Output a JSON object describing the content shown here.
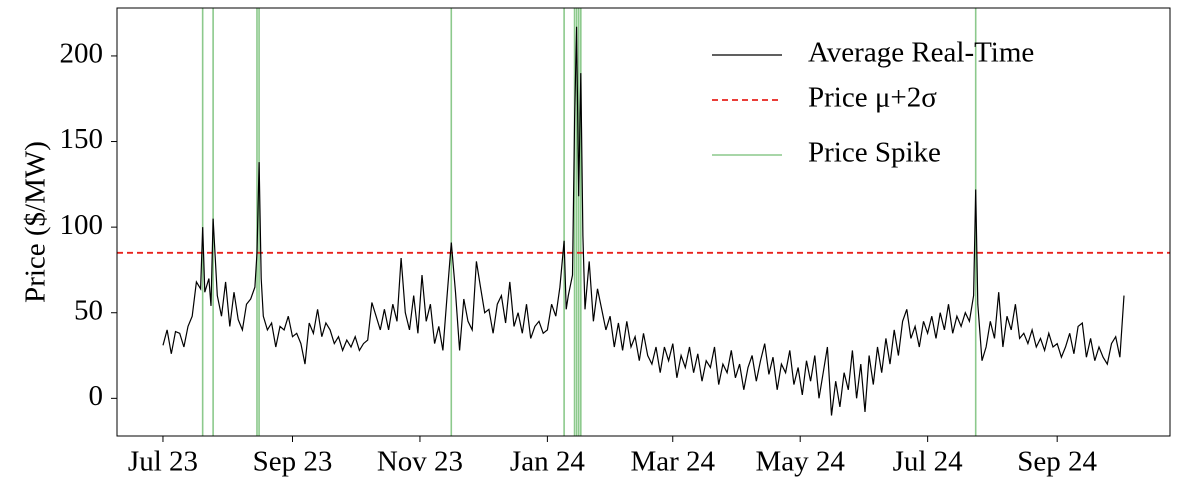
{
  "chart_data": {
    "type": "line",
    "ylabel": "Price ($/MW)",
    "x": [
      0,
      2,
      4,
      6,
      8,
      10,
      12,
      14,
      16,
      18,
      19,
      20,
      22,
      23,
      24,
      26,
      28,
      30,
      32,
      34,
      36,
      38,
      40,
      42,
      44,
      45,
      46,
      47,
      48,
      50,
      52,
      54,
      56,
      58,
      60,
      62,
      64,
      66,
      68,
      70,
      72,
      74,
      76,
      78,
      80,
      82,
      84,
      86,
      88,
      90,
      92,
      94,
      96,
      98,
      100,
      102,
      104,
      106,
      108,
      110,
      112,
      114,
      116,
      118,
      120,
      122,
      124,
      126,
      128,
      130,
      132,
      134,
      136,
      138,
      140,
      142,
      144,
      146,
      148,
      150,
      152,
      154,
      156,
      158,
      160,
      162,
      164,
      166,
      168,
      170,
      172,
      174,
      176,
      178,
      180,
      182,
      184,
      186,
      188,
      190,
      192,
      193,
      194,
      196,
      197,
      198,
      199,
      200,
      201,
      202,
      204,
      206,
      208,
      210,
      212,
      214,
      216,
      218,
      220,
      222,
      224,
      226,
      228,
      230,
      232,
      234,
      236,
      238,
      240,
      242,
      244,
      246,
      248,
      250,
      252,
      254,
      256,
      258,
      260,
      262,
      264,
      266,
      268,
      270,
      272,
      274,
      276,
      278,
      280,
      282,
      284,
      286,
      288,
      290,
      292,
      294,
      296,
      298,
      300,
      302,
      304,
      306,
      308,
      310,
      312,
      314,
      316,
      318,
      320,
      322,
      324,
      326,
      328,
      330,
      332,
      334,
      336,
      338,
      340,
      342,
      344,
      346,
      348,
      350,
      352,
      354,
      356,
      358,
      360,
      362,
      364,
      366,
      368,
      370,
      372,
      374,
      376,
      378,
      380,
      382,
      384,
      386,
      388,
      389,
      390,
      392,
      394,
      396,
      398,
      400,
      402,
      404,
      406,
      408,
      410,
      412,
      414,
      416,
      418,
      420,
      422,
      424,
      426,
      428,
      430,
      432,
      434,
      436,
      438,
      440,
      442,
      444,
      446,
      448,
      450,
      452,
      454,
      456,
      458,
      460
    ],
    "series": [
      {
        "name": "Average Real-Time",
        "color": "#000000",
        "values": [
          31,
          40,
          26,
          39,
          38,
          30,
          42,
          48,
          68,
          64,
          100,
          62,
          70,
          54,
          105,
          60,
          48,
          68,
          42,
          62,
          46,
          40,
          55,
          58,
          65,
          85,
          138,
          70,
          48,
          40,
          44,
          30,
          42,
          40,
          48,
          36,
          38,
          32,
          20,
          44,
          38,
          52,
          36,
          44,
          40,
          32,
          36,
          28,
          34,
          30,
          36,
          28,
          32,
          34,
          56,
          48,
          40,
          52,
          40,
          55,
          45,
          82,
          50,
          40,
          60,
          38,
          72,
          45,
          55,
          32,
          42,
          28,
          60,
          91,
          62,
          28,
          58,
          45,
          40,
          80,
          65,
          50,
          52,
          38,
          55,
          60,
          44,
          68,
          42,
          50,
          38,
          55,
          35,
          42,
          45,
          38,
          40,
          55,
          48,
          65,
          92,
          52,
          60,
          72,
          163,
          217,
          118,
          190,
          95,
          52,
          80,
          45,
          64,
          52,
          40,
          48,
          30,
          44,
          28,
          45,
          30,
          36,
          22,
          38,
          25,
          20,
          30,
          15,
          30,
          22,
          32,
          12,
          25,
          18,
          30,
          15,
          26,
          10,
          22,
          18,
          30,
          8,
          20,
          15,
          28,
          12,
          20,
          5,
          18,
          25,
          10,
          22,
          32,
          14,
          24,
          5,
          20,
          15,
          28,
          8,
          18,
          2,
          22,
          10,
          25,
          0,
          15,
          30,
          -10,
          10,
          -5,
          15,
          5,
          28,
          0,
          20,
          -8,
          25,
          8,
          30,
          15,
          35,
          20,
          40,
          25,
          45,
          52,
          35,
          42,
          30,
          45,
          38,
          48,
          35,
          50,
          40,
          55,
          38,
          48,
          42,
          50,
          45,
          60,
          122,
          55,
          22,
          30,
          45,
          35,
          62,
          30,
          48,
          40,
          55,
          35,
          38,
          32,
          40,
          30,
          35,
          28,
          38,
          30,
          32,
          24,
          30,
          38,
          26,
          42,
          44,
          24,
          35,
          22,
          30,
          24,
          20,
          32,
          36,
          24,
          60
        ]
      }
    ],
    "threshold": {
      "name": "Price μ+2σ",
      "value": 85,
      "color": "#e8221d"
    },
    "spikes": {
      "name": "Price Spike",
      "color": "#8cc98c",
      "x": [
        19,
        24,
        45,
        46,
        138,
        192,
        197,
        198,
        199,
        200,
        389
      ]
    },
    "xlim": [
      -22,
      482
    ],
    "xticks": [
      {
        "value": 0,
        "label": "Jul 23"
      },
      {
        "value": 62,
        "label": "Sep 23"
      },
      {
        "value": 123,
        "label": "Nov 23"
      },
      {
        "value": 184,
        "label": "Jan 24"
      },
      {
        "value": 244,
        "label": "Mar 24"
      },
      {
        "value": 305,
        "label": "May 24"
      },
      {
        "value": 366,
        "label": "Jul 24"
      },
      {
        "value": 428,
        "label": "Sep 24"
      }
    ],
    "ylim": [
      -22,
      228
    ],
    "yticks": [
      0,
      50,
      100,
      150,
      200
    ],
    "legend": "upper right"
  }
}
